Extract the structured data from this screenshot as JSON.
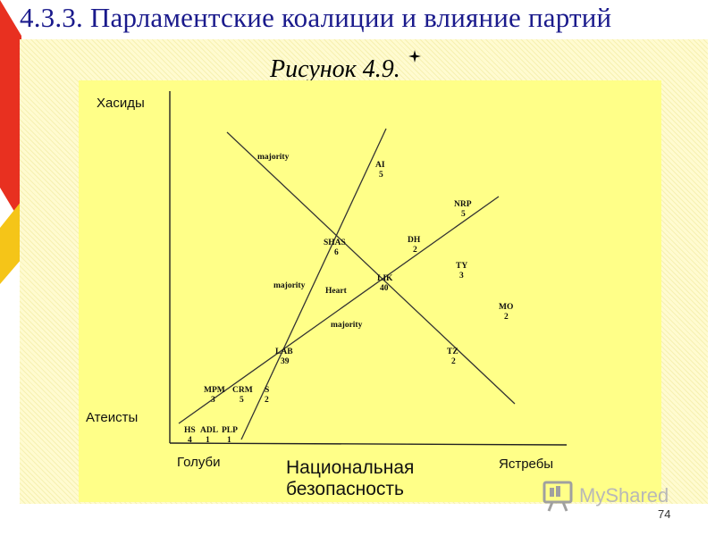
{
  "slide": {
    "title": "4.3.3. Парламентские коалиции и влияние партий",
    "figure_caption": "Рисунок 4.9.",
    "page_number": "74",
    "watermark": "MyShared"
  },
  "diagram": {
    "axis_labels": {
      "y_top": "Хасиды",
      "y_bottom": "Атеисты",
      "x_left": "Голуби",
      "x_center_line1": "Национальная",
      "x_center_line2": "безопасность",
      "x_right": "Ястребы"
    },
    "line_labels": {
      "majority_top": "majority",
      "majority_mid": "majority",
      "majority_low": "majority",
      "heart": "Heart"
    },
    "parties": [
      {
        "name": "AI",
        "seats": "5"
      },
      {
        "name": "NRP",
        "seats": "5"
      },
      {
        "name": "SHAS",
        "seats": "6"
      },
      {
        "name": "DH",
        "seats": "2"
      },
      {
        "name": "TY",
        "seats": "3"
      },
      {
        "name": "LIK",
        "seats": "40"
      },
      {
        "name": "MO",
        "seats": "2"
      },
      {
        "name": "LAB",
        "seats": "39"
      },
      {
        "name": "TZ",
        "seats": "2"
      },
      {
        "name": "MPM",
        "seats": "3"
      },
      {
        "name": "CRM",
        "seats": "5"
      },
      {
        "name": "S",
        "seats": "2"
      },
      {
        "name": "HS",
        "seats": "4"
      },
      {
        "name": "ADL",
        "seats": "1"
      },
      {
        "name": "PLP",
        "seats": "1"
      }
    ]
  },
  "colors": {
    "title": "#1a1a8c",
    "panel": "#ffff88",
    "decor_red": "#e83020",
    "decor_yellow": "#f5c518"
  }
}
